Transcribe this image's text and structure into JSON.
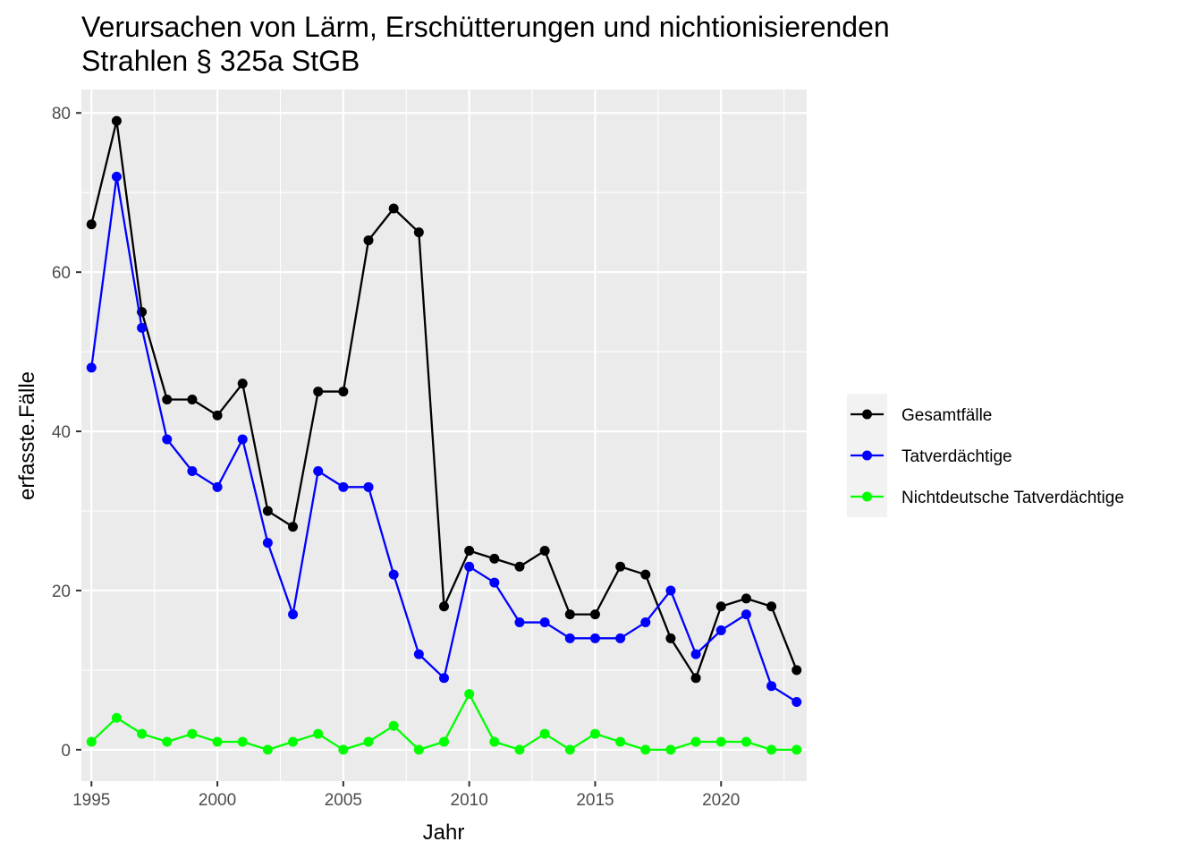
{
  "chart_data": {
    "type": "line",
    "title_lines": [
      "Verursachen von Lärm, Erschütterungen und nichtionisierenden",
      "Strahlen § 325a StGB"
    ],
    "xlabel": "Jahr",
    "ylabel": "erfasste.Fälle",
    "x": [
      1995,
      1996,
      1997,
      1998,
      1999,
      2000,
      2001,
      2002,
      2003,
      2004,
      2005,
      2006,
      2007,
      2008,
      2009,
      2010,
      2011,
      2012,
      2013,
      2014,
      2015,
      2016,
      2017,
      2018,
      2019,
      2020,
      2021,
      2022,
      2023
    ],
    "x_ticks": [
      1995,
      2000,
      2005,
      2010,
      2015,
      2020
    ],
    "y_ticks": [
      0,
      20,
      40,
      60,
      80
    ],
    "xlim": [
      1994.6,
      2023.4
    ],
    "ylim": [
      -3.95,
      82.95
    ],
    "grid": true,
    "legend_position": "right",
    "series": [
      {
        "name": "Gesamtfälle",
        "color": "#000000",
        "values": [
          66,
          79,
          55,
          44,
          44,
          42,
          46,
          30,
          28,
          45,
          45,
          64,
          68,
          65,
          18,
          25,
          24,
          23,
          25,
          17,
          17,
          23,
          22,
          14,
          9,
          18,
          19,
          18,
          10
        ]
      },
      {
        "name": "Tatverdächtige",
        "color": "#0000ff",
        "values": [
          48,
          72,
          53,
          39,
          35,
          33,
          39,
          26,
          17,
          35,
          33,
          33,
          22,
          12,
          9,
          23,
          21,
          16,
          16,
          14,
          14,
          14,
          16,
          20,
          12,
          15,
          17,
          8,
          6
        ]
      },
      {
        "name": "Nichtdeutsche Tatverdächtige",
        "color": "#00ff00",
        "values": [
          1,
          4,
          2,
          1,
          2,
          1,
          1,
          0,
          1,
          2,
          0,
          1,
          3,
          0,
          1,
          7,
          1,
          0,
          2,
          0,
          2,
          1,
          0,
          0,
          1,
          1,
          1,
          0,
          0
        ]
      }
    ]
  }
}
